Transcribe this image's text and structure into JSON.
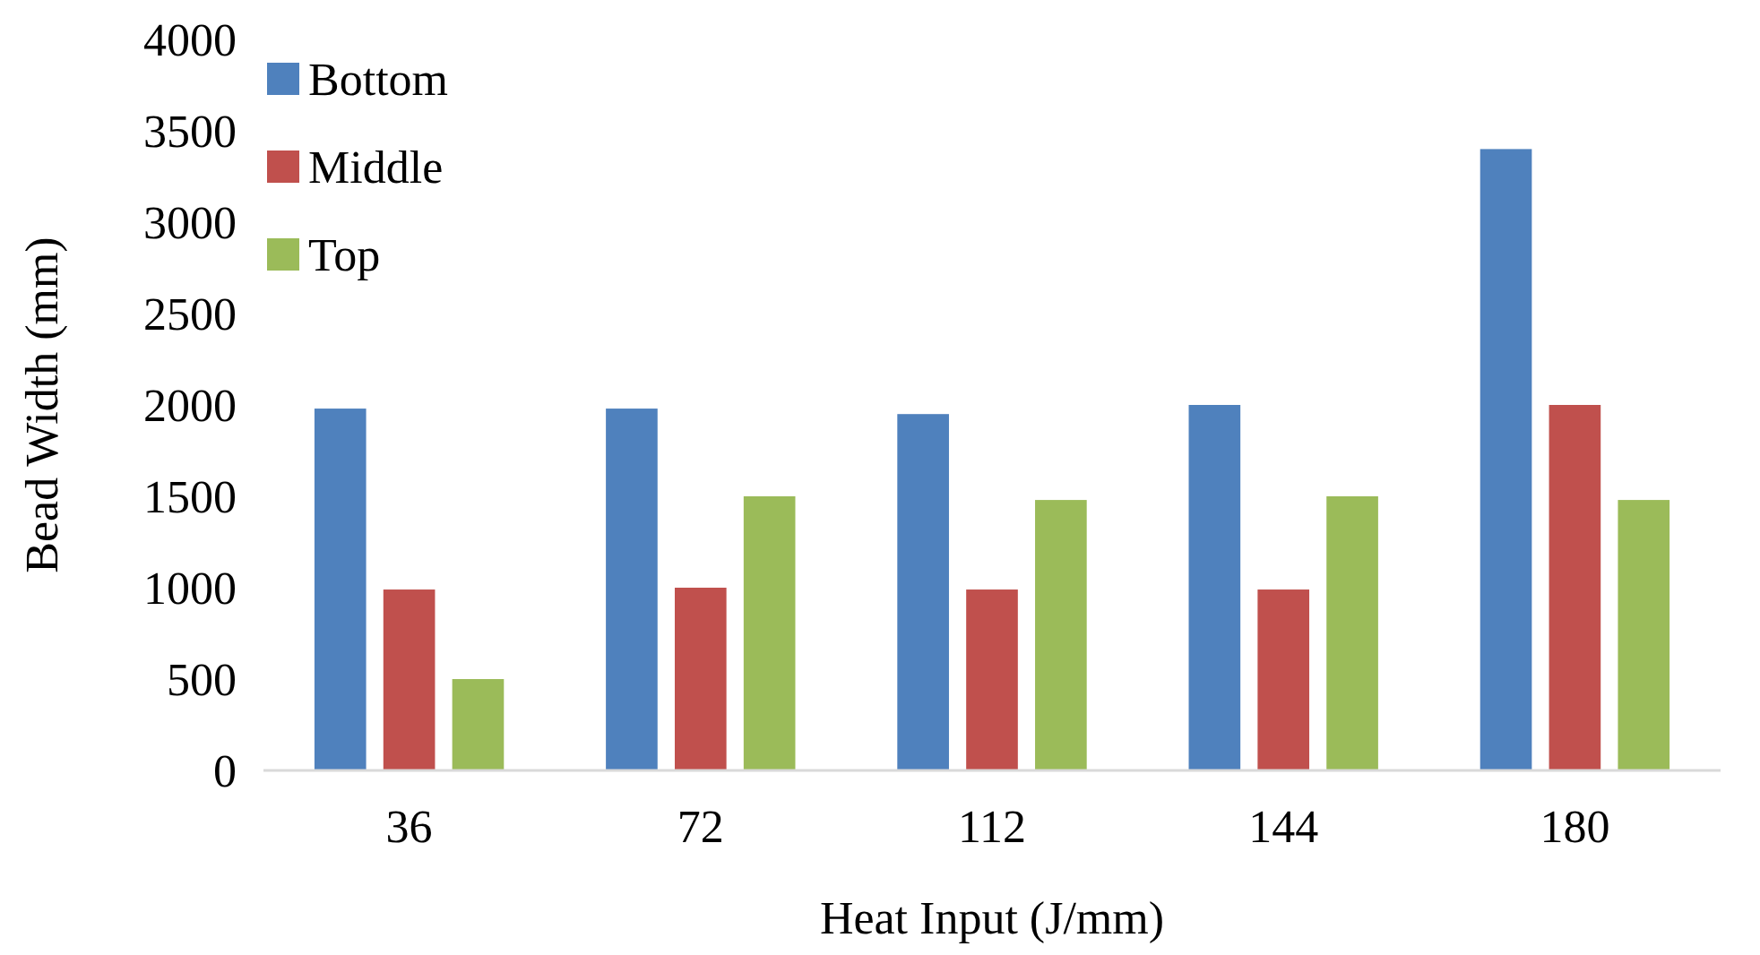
{
  "chart_data": {
    "type": "bar",
    "xlabel": "Heat Input (J/mm)",
    "ylabel": "Bead Width (mm)",
    "categories": [
      "36",
      "72",
      "112",
      "144",
      "180"
    ],
    "series": [
      {
        "name": "Bottom",
        "color": "#4f81bd",
        "values": [
          1980,
          1980,
          1950,
          2000,
          3400
        ]
      },
      {
        "name": "Middle",
        "color": "#c0504d",
        "values": [
          990,
          1000,
          990,
          990,
          2000
        ]
      },
      {
        "name": "Top",
        "color": "#9bbb59",
        "values": [
          500,
          1500,
          1480,
          1500,
          1480
        ]
      }
    ],
    "ylim": [
      0,
      4000
    ],
    "yticks": [
      0,
      500,
      1000,
      1500,
      2000,
      2500,
      3000,
      3500,
      4000
    ],
    "grid": false,
    "legend": "top left"
  }
}
